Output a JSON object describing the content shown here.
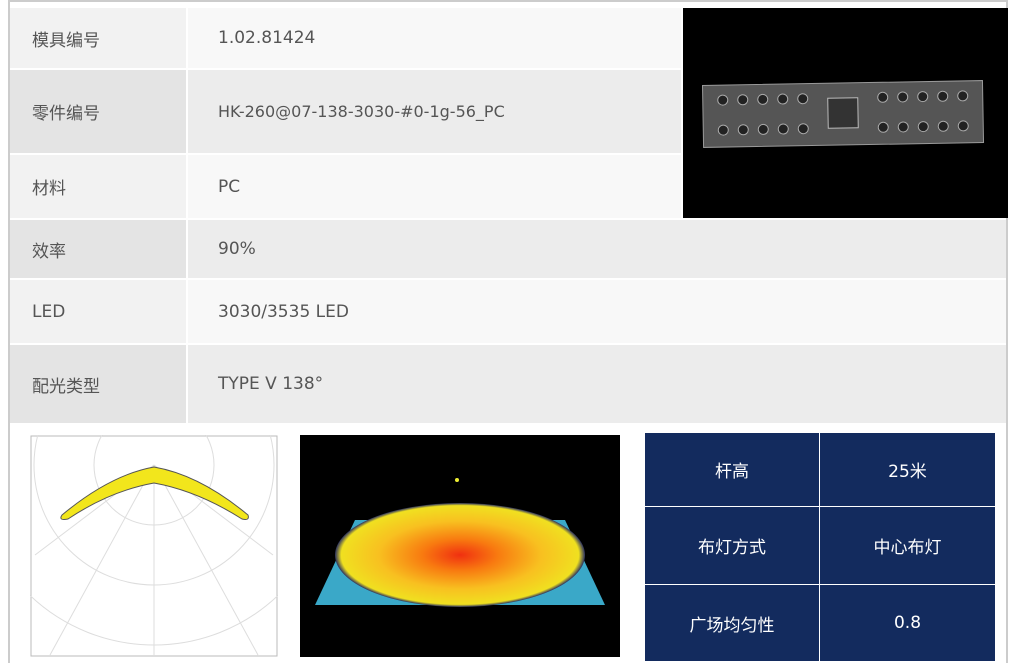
{
  "spec_table": {
    "rows": [
      [
        "模具编号",
        "1.02.81424"
      ],
      [
        "零件编号",
        "HK-260@07-138-3030-#0-1g-56_PC"
      ],
      [
        "材料",
        "PC"
      ],
      [
        "效率",
        "90%"
      ],
      [
        "LED",
        "3030/3535 LED"
      ],
      [
        "配光类型",
        "TYPE V 138°"
      ]
    ]
  },
  "install_table": {
    "rows": [
      [
        "杆高",
        "25米"
      ],
      [
        "布灯方式",
        "中心布灯"
      ],
      [
        "广场均匀性",
        "0.8"
      ]
    ]
  }
}
